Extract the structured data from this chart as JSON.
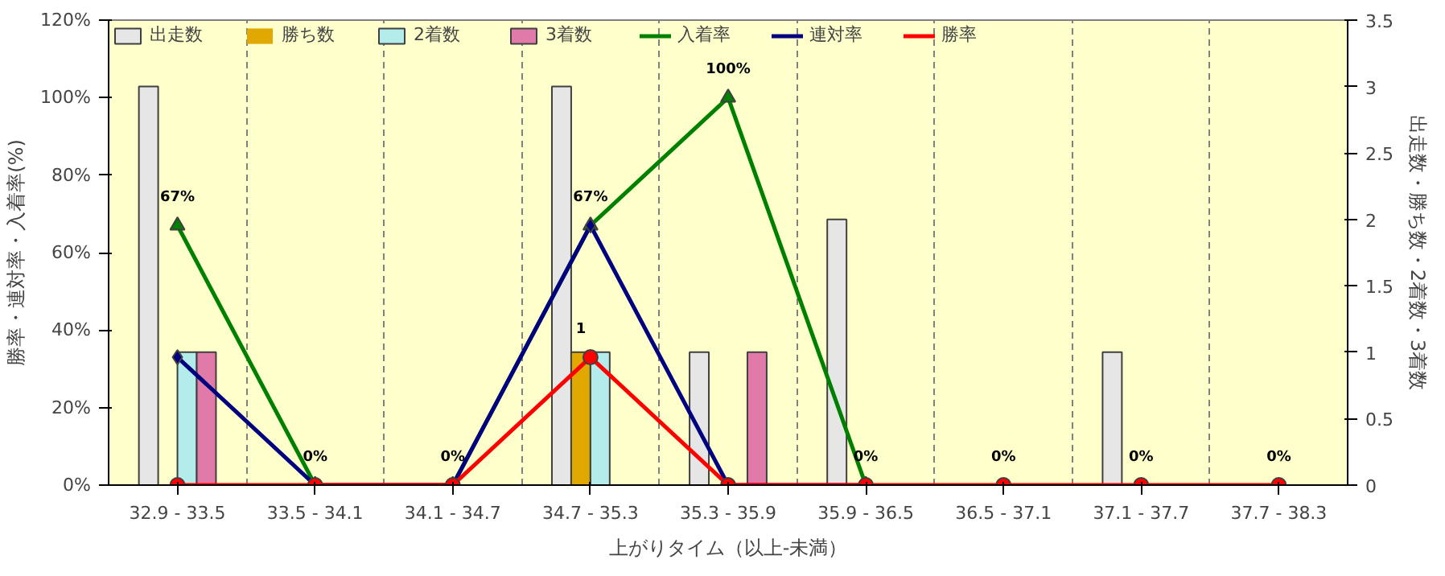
{
  "chart_data": {
    "type": "bar",
    "xlabel": "上がりタイム（以上-未満）",
    "ylabel": "勝率・連対率・入着率(%)",
    "y2label": "出走数・勝ち数・2着数・3着数",
    "categories": [
      "32.9 - 33.5",
      "33.5 - 34.1",
      "34.1 - 34.7",
      "34.7 - 35.3",
      "35.3 - 35.9",
      "35.9 - 36.5",
      "36.5 - 37.1",
      "37.1 - 37.7",
      "37.7 - 38.3"
    ],
    "series": [
      {
        "name": "出走数",
        "axis": "y2",
        "color": "#e6e6e6",
        "values": [
          3,
          0,
          0,
          3,
          1,
          2,
          0,
          1,
          0
        ]
      },
      {
        "name": "勝ち数",
        "axis": "y2",
        "color": "#e0a800",
        "values": [
          0,
          0,
          0,
          1,
          0,
          0,
          0,
          0,
          0
        ],
        "value_labels": [
          null,
          null,
          null,
          "1",
          null,
          null,
          null,
          null,
          null
        ]
      },
      {
        "name": "2着数",
        "axis": "y2",
        "color": "#b4ecec",
        "values": [
          1,
          0,
          0,
          1,
          0,
          0,
          0,
          0,
          0
        ]
      },
      {
        "name": "3着数",
        "axis": "y2",
        "color": "#e07aa8",
        "values": [
          1,
          0,
          0,
          0,
          1,
          0,
          0,
          0,
          0
        ]
      },
      {
        "name": "入着率",
        "type": "line",
        "color": "#008000",
        "marker": "triangle",
        "values": [
          67,
          0,
          0,
          67,
          100,
          0,
          null,
          null,
          null
        ],
        "value_labels": [
          "67%",
          "0%",
          "0%",
          "67%",
          "100%",
          "0%",
          null,
          null,
          null
        ]
      },
      {
        "name": "連対率",
        "type": "line",
        "color": "#000080",
        "marker": "diamond",
        "values": [
          33,
          0,
          0,
          67,
          0,
          0,
          null,
          null,
          null
        ]
      },
      {
        "name": "勝率",
        "type": "line",
        "color": "#ff0000",
        "marker": "circle",
        "values": [
          0,
          0,
          0,
          33,
          0,
          0,
          0,
          0,
          0
        ],
        "value_labels": [
          null,
          null,
          null,
          null,
          null,
          null,
          "0%",
          "0%",
          "0%"
        ]
      }
    ],
    "ylim": [
      0,
      120
    ],
    "yticks": [
      {
        "value": 0,
        "label": "0%"
      },
      {
        "value": 20,
        "label": "20%"
      },
      {
        "value": 40,
        "label": "40%"
      },
      {
        "value": 60,
        "label": "60%"
      },
      {
        "value": 80,
        "label": "80%"
      },
      {
        "value": 100,
        "label": "100%"
      },
      {
        "value": 120,
        "label": "120%"
      }
    ],
    "y2lim": [
      0,
      3.5
    ],
    "y2ticks": [
      0,
      0.5,
      1,
      1.5,
      2,
      2.5,
      3,
      3.5
    ],
    "grid": "x",
    "legend": "top left"
  }
}
